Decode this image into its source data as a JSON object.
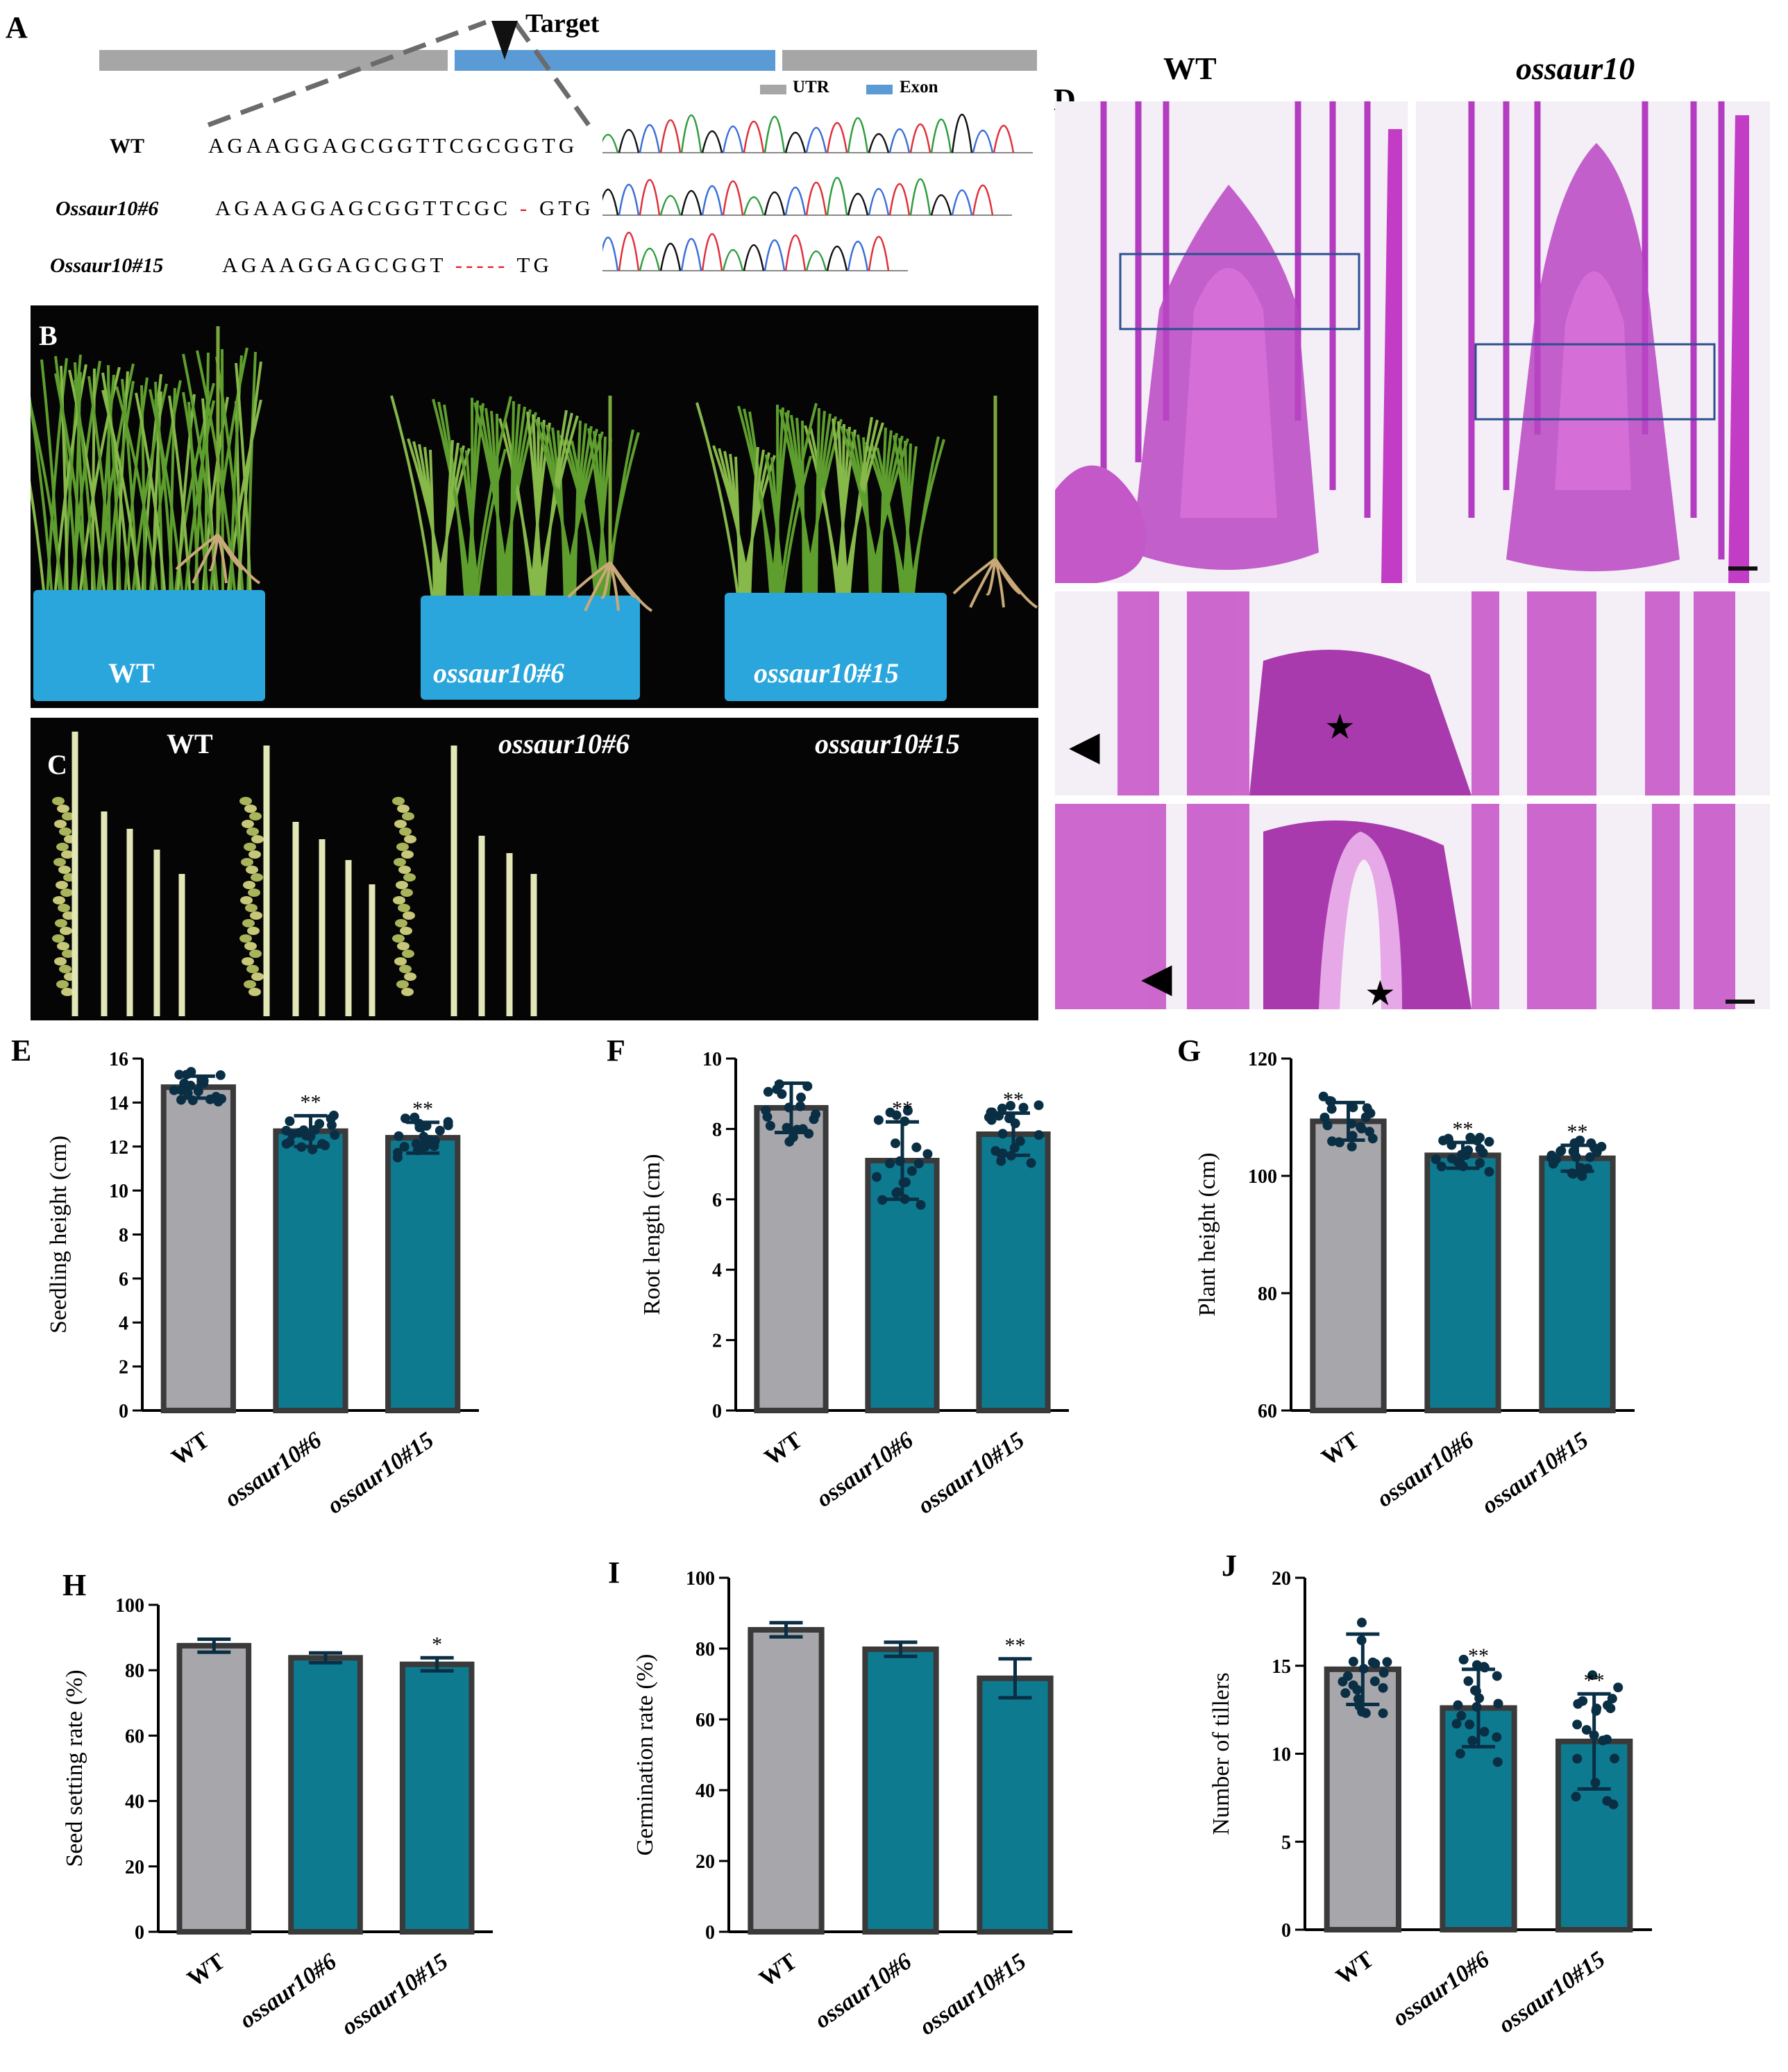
{
  "panel_a": {
    "label": "A",
    "target_label": "Target",
    "legend": [
      {
        "name": "UTR",
        "color": "#a6a6a6"
      },
      {
        "name": "Exon",
        "color": "#5b9bd5"
      }
    ],
    "sequences": [
      {
        "name": "WT",
        "seq": "AGAAGGAGCGGTTCGCGGTG",
        "del": "",
        "tail": ""
      },
      {
        "name": "Ossaur10#6",
        "seq": "AGAAGGAGCGGTTCGC",
        "del": "-",
        "tail": "GTG"
      },
      {
        "name": "Ossaur10#15",
        "seq": "AGAAGGAGCGGT",
        "del": "-----",
        "tail": "TG"
      }
    ]
  },
  "panel_b": {
    "label": "B",
    "trays": [
      "WT",
      "ossaur10#6",
      "ossaur10#15"
    ]
  },
  "panel_c": {
    "label": "C",
    "lines": [
      "WT",
      "ossaur10#6",
      "ossaur10#15"
    ]
  },
  "panel_d": {
    "label": "D",
    "col_titles": [
      "WT",
      "ossaur10"
    ],
    "markers": {
      "arrowhead": "◀",
      "star": "★"
    }
  },
  "colors": {
    "wt_bar": "#a7a6ab",
    "mut_bar": "#0e7a90",
    "outline": "#3a3a3a",
    "dots": "#0a2f45"
  },
  "chart_data": [
    {
      "panel": "E",
      "type": "bar",
      "ylabel": "Seedling height (cm)",
      "categories": [
        "WT",
        "ossaur10#6",
        "ossaur10#15"
      ],
      "values": [
        14.7,
        12.7,
        12.4
      ],
      "errors": [
        0.5,
        0.7,
        0.7
      ],
      "significance": [
        "",
        "**",
        "**"
      ],
      "ylim": [
        0,
        16
      ],
      "yticks": [
        0,
        2,
        4,
        6,
        8,
        10,
        12,
        14,
        16
      ],
      "points": true
    },
    {
      "panel": "F",
      "type": "bar",
      "ylabel": "Root length (cm)",
      "categories": [
        "WT",
        "ossaur10#6",
        "ossaur10#15"
      ],
      "values": [
        8.6,
        7.1,
        7.85
      ],
      "errors": [
        0.7,
        1.1,
        0.6
      ],
      "significance": [
        "",
        "**",
        "**"
      ],
      "ylim": [
        0,
        10
      ],
      "yticks": [
        0,
        2,
        4,
        6,
        8,
        10
      ],
      "points": true
    },
    {
      "panel": "G",
      "type": "bar",
      "ylabel": "Plant height (cm)",
      "categories": [
        "WT",
        "ossaur10#6",
        "ossaur10#15"
      ],
      "values": [
        109.3,
        103.5,
        103.0
      ],
      "errors": [
        3.2,
        2.2,
        2.2
      ],
      "significance": [
        "",
        "**",
        "**"
      ],
      "ylim": [
        60,
        120
      ],
      "yticks": [
        60,
        80,
        100,
        120
      ],
      "points": true
    },
    {
      "panel": "H",
      "type": "bar",
      "ylabel": "Seed setting rate (%)",
      "categories": [
        "WT",
        "ossaur10#6",
        "ossaur10#15"
      ],
      "values": [
        87.5,
        83.8,
        81.8
      ],
      "errors": [
        2.0,
        1.5,
        2.0
      ],
      "significance": [
        "",
        "",
        "*"
      ],
      "ylim": [
        0,
        100
      ],
      "yticks": [
        0,
        20,
        40,
        60,
        80,
        100
      ],
      "points": false
    },
    {
      "panel": "I",
      "type": "bar",
      "ylabel": "Germination rate (%)",
      "categories": [
        "WT",
        "ossaur10#6",
        "ossaur10#15"
      ],
      "values": [
        85.3,
        79.8,
        71.6
      ],
      "errors": [
        2.0,
        2.0,
        5.5
      ],
      "significance": [
        "",
        "",
        "**"
      ],
      "ylim": [
        0,
        100
      ],
      "yticks": [
        0,
        20,
        40,
        60,
        80,
        100
      ],
      "points": false
    },
    {
      "panel": "J",
      "type": "bar",
      "ylabel": "Number of tillers",
      "categories": [
        "WT",
        "ossaur10#6",
        "ossaur10#15"
      ],
      "values": [
        14.8,
        12.6,
        10.7
      ],
      "errors": [
        2.0,
        2.2,
        2.7
      ],
      "significance": [
        "",
        "**",
        "**"
      ],
      "ylim": [
        0,
        20
      ],
      "yticks": [
        0,
        5,
        10,
        15,
        20
      ],
      "points": true
    }
  ]
}
